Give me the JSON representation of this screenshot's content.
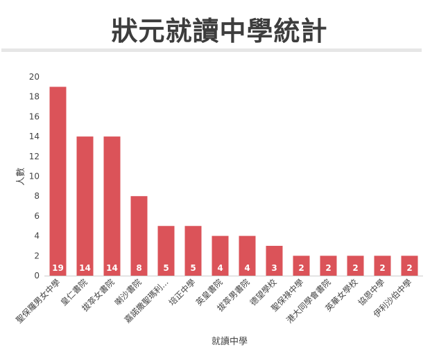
{
  "chart_data": {
    "type": "bar",
    "title": "狀元就讀中學統計",
    "xlabel": "就讀中學",
    "ylabel": "人數",
    "ylim": [
      0,
      20
    ],
    "yticks": [
      0,
      2,
      4,
      6,
      8,
      10,
      12,
      14,
      16,
      18,
      20
    ],
    "grid": false,
    "bar_color": "#db5359",
    "categories": [
      "聖保羅男女中學",
      "皇仁書院",
      "拔萃女書院",
      "喇沙書院",
      "嘉諾撒聖瑪利...",
      "培正中學",
      "英皇書院",
      "拔萃男書院",
      "德望學校",
      "聖保祿中學",
      "港大同學會書院",
      "英華女學校",
      "協恩中學",
      "伊利沙伯中學"
    ],
    "values": [
      19,
      14,
      14,
      8,
      5,
      5,
      4,
      4,
      3,
      2,
      2,
      2,
      2,
      2
    ]
  }
}
